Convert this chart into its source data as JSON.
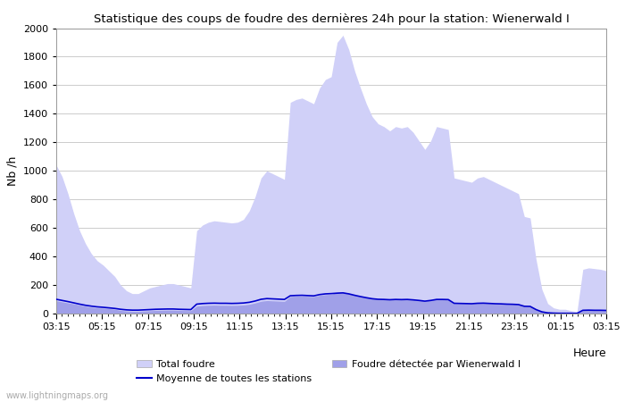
{
  "title": "Statistique des coups de foudre des dernières 24h pour la station: Wienerwald I",
  "xlabel": "Heure",
  "ylabel": "Nb /h",
  "xlim": [
    0,
    96
  ],
  "ylim": [
    0,
    2000
  ],
  "yticks": [
    0,
    200,
    400,
    600,
    800,
    1000,
    1200,
    1400,
    1600,
    1800,
    2000
  ],
  "xtick_labels": [
    "03:15",
    "05:15",
    "07:15",
    "09:15",
    "11:15",
    "13:15",
    "15:15",
    "17:15",
    "19:15",
    "21:15",
    "23:15",
    "01:15",
    "03:15"
  ],
  "xtick_positions": [
    0,
    8,
    16,
    24,
    32,
    40,
    48,
    56,
    64,
    72,
    80,
    88,
    96
  ],
  "background_color": "#ffffff",
  "plot_bg_color": "#ffffff",
  "grid_color": "#cccccc",
  "watermark": "www.lightningmaps.org",
  "total_foudre_color": "#d0d0f8",
  "station_foudre_color": "#a0a0e8",
  "moyenne_color": "#0000cc",
  "total_foudre": [
    1040,
    960,
    840,
    700,
    580,
    490,
    420,
    370,
    340,
    300,
    260,
    200,
    160,
    140,
    140,
    160,
    180,
    190,
    200,
    210,
    210,
    200,
    190,
    180,
    580,
    620,
    640,
    650,
    645,
    640,
    635,
    640,
    660,
    720,
    820,
    950,
    1000,
    980,
    960,
    940,
    1480,
    1500,
    1510,
    1490,
    1470,
    1580,
    1640,
    1660,
    1900,
    1950,
    1850,
    1700,
    1580,
    1470,
    1380,
    1330,
    1310,
    1280,
    1310,
    1300,
    1310,
    1270,
    1210,
    1150,
    1210,
    1310,
    1300,
    1290,
    950,
    940,
    930,
    920,
    950,
    960,
    940,
    920,
    900,
    880,
    860,
    840,
    680,
    670,
    380,
    170,
    70,
    40,
    30,
    30,
    20,
    15,
    310,
    320,
    315,
    310,
    300
  ],
  "station_foudre": [
    90,
    82,
    75,
    68,
    60,
    52,
    45,
    40,
    38,
    35,
    30,
    22,
    18,
    16,
    16,
    18,
    20,
    22,
    23,
    24,
    24,
    22,
    21,
    20,
    52,
    56,
    58,
    59,
    58,
    58,
    57,
    58,
    60,
    65,
    74,
    86,
    91,
    89,
    87,
    85,
    120,
    122,
    123,
    121,
    119,
    128,
    133,
    135,
    148,
    150,
    142,
    130,
    121,
    112,
    105,
    101,
    100,
    98,
    100,
    99,
    100,
    97,
    93,
    88,
    93,
    100,
    100,
    99,
    73,
    72,
    71,
    70,
    73,
    74,
    72,
    70,
    69,
    67,
    66,
    64,
    52,
    51,
    29,
    13,
    5,
    3,
    2,
    2,
    2,
    1,
    24,
    25,
    24,
    24,
    23
  ],
  "moyenne": [
    100,
    92,
    84,
    75,
    66,
    58,
    52,
    47,
    44,
    40,
    36,
    30,
    26,
    24,
    24,
    26,
    28,
    30,
    31,
    32,
    32,
    30,
    29,
    28,
    66,
    70,
    72,
    73,
    72,
    72,
    71,
    72,
    74,
    79,
    88,
    100,
    105,
    103,
    101,
    99,
    125,
    127,
    128,
    126,
    124,
    133,
    138,
    140,
    143,
    145,
    138,
    128,
    119,
    111,
    104,
    100,
    99,
    97,
    99,
    98,
    99,
    96,
    92,
    87,
    92,
    99,
    99,
    98,
    72,
    71,
    70,
    69,
    72,
    73,
    71,
    69,
    68,
    66,
    65,
    63,
    51,
    50,
    28,
    12,
    5,
    3,
    2,
    2,
    2,
    1,
    23,
    24,
    23,
    23,
    22
  ]
}
